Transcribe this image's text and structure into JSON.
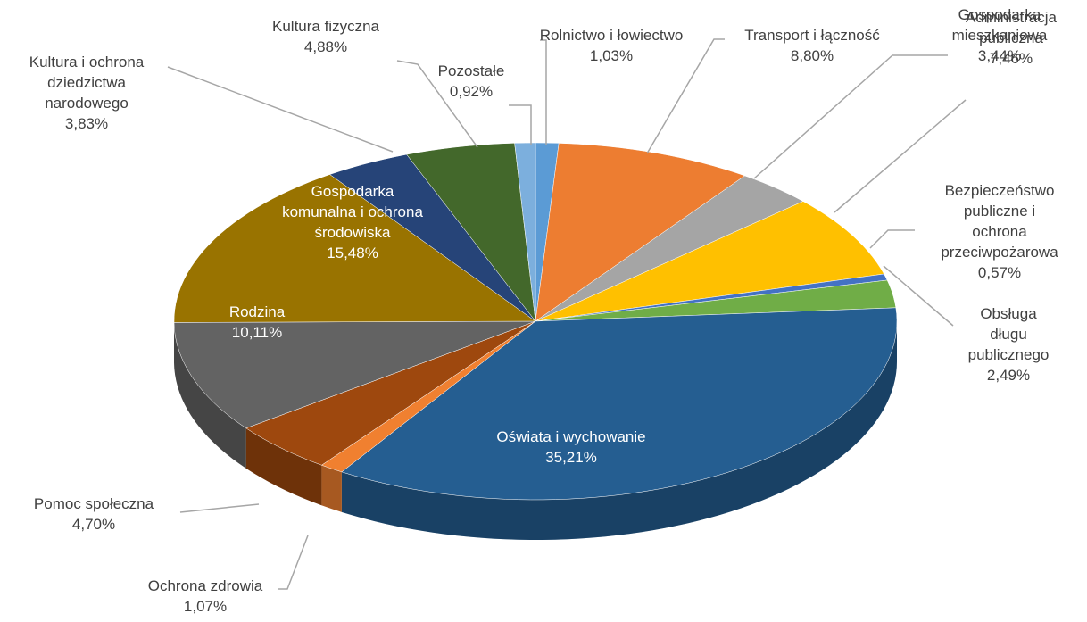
{
  "chart_data": {
    "type": "pie3d",
    "categories": [
      "Rolnictwo i łowiectwo",
      "Transport i łączność",
      "Gospodarka\nmieszkaniowa",
      "Administracja\npubliczna",
      "Bezpieczeństwo\npubliczne i ochrona\nprzeciwpożarowa",
      "Obsługa długu\npublicznego",
      "Oświata i wychowanie",
      "Ochrona zdrowia",
      "Pomoc społeczna",
      "Rodzina",
      "Gospodarka\nkomunalna i ochrona\nśrodowiska",
      "Kultura i ochrona\ndziedzictwa\nnarodowego",
      "Kultura fizyczna",
      "Pozostałe"
    ],
    "values": [
      1.03,
      8.8,
      3.44,
      7.46,
      0.57,
      2.49,
      35.21,
      1.07,
      4.7,
      10.11,
      15.48,
      3.83,
      4.88,
      0.92
    ],
    "value_labels": [
      "1,03%",
      "8,80%",
      "3,44%",
      "7,46%",
      "0,57%",
      "2,49%",
      "35,21%",
      "1,07%",
      "4,70%",
      "10,11%",
      "15,48%",
      "3,83%",
      "4,88%",
      "0,92%"
    ],
    "colors": [
      "#5b9bd5",
      "#ed7d31",
      "#a5a5a5",
      "#ffc000",
      "#4472c4",
      "#70ad47",
      "#255e91",
      "#f08030",
      "#9e480e",
      "#636363",
      "#997300",
      "#264478",
      "#43682b",
      "#7cafdd"
    ]
  }
}
